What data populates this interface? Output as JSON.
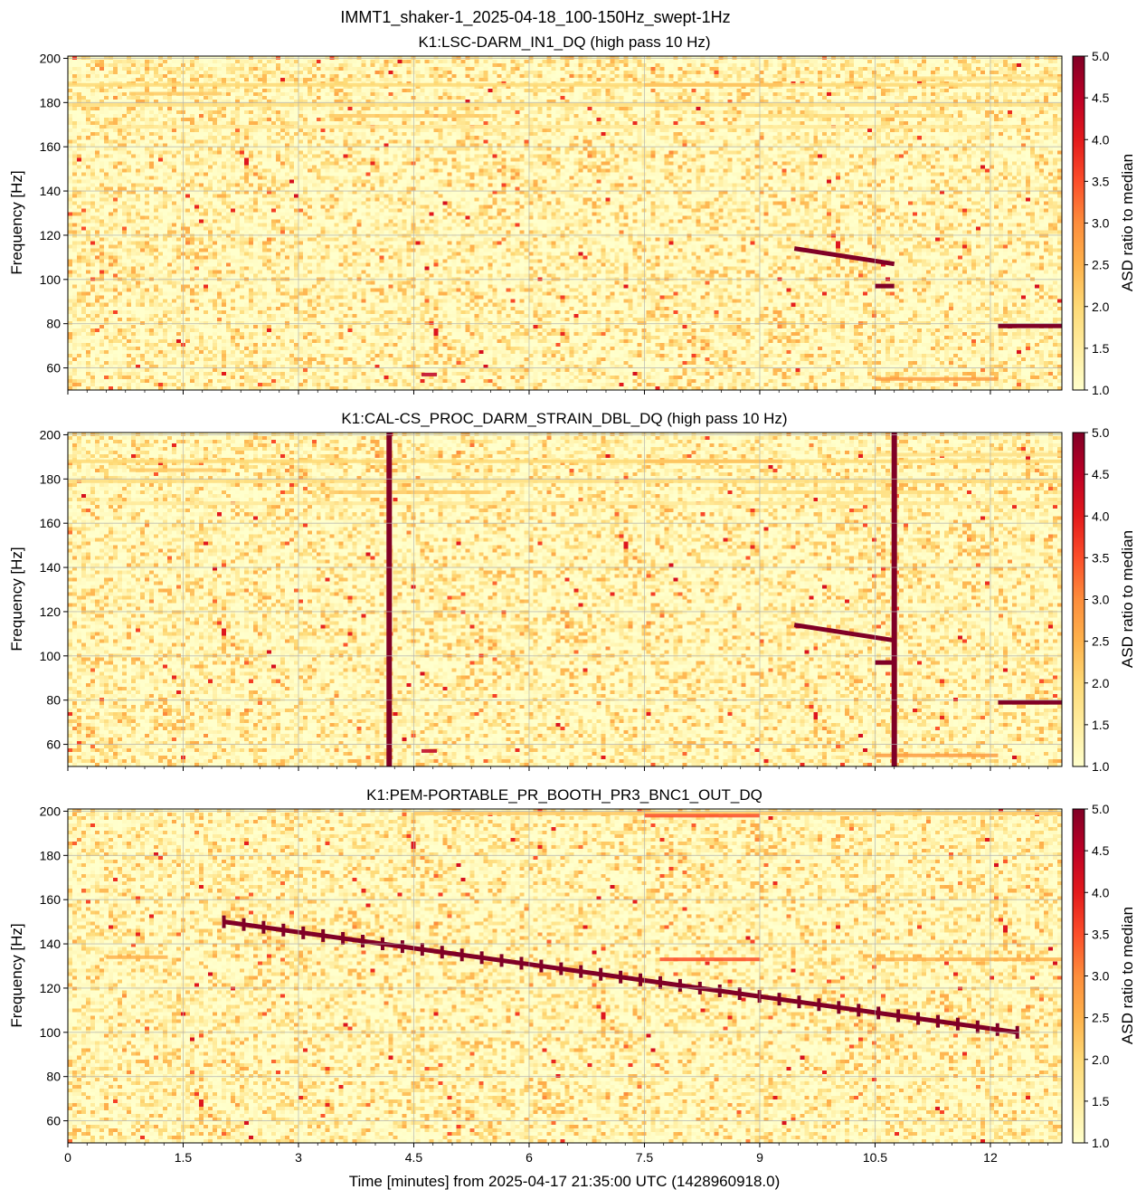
{
  "figure": {
    "suptitle": "IMMT1_shaker-1_2025-04-18_100-150Hz_swept-1Hz",
    "xlabel": "Time [minutes] from 2025-04-17 21:35:00 UTC (1428960918.0)",
    "ylabel": "Frequency [Hz]",
    "colorbar_label": "ASD ratio to median"
  },
  "colormap": {
    "name": "YlOrRd",
    "stops": [
      "#ffffcc",
      "#ffeda0",
      "#fed976",
      "#feb24c",
      "#fd8d3c",
      "#fc4e2a",
      "#e31a1c",
      "#bd0026",
      "#800026"
    ]
  },
  "chart_data": [
    {
      "type": "heatmap",
      "title": "K1:LSC-DARM_IN1_DQ (high pass 10 Hz)",
      "xlim": [
        0,
        12.93
      ],
      "ylim": [
        50,
        201
      ],
      "xticks": [
        0,
        1.5,
        3,
        4.5,
        6,
        7.5,
        9,
        10.5,
        12
      ],
      "xtick_labels": [],
      "yticks": [
        60,
        80,
        100,
        120,
        140,
        160,
        180,
        200
      ],
      "ytick_labels": [
        "60",
        "80",
        "100",
        "120",
        "140",
        "160",
        "180",
        "200"
      ],
      "colorbar": {
        "range": [
          1.0,
          5.0
        ],
        "ticks": [
          "1.0",
          "1.5",
          "2.0",
          "2.5",
          "3.0",
          "3.5",
          "4.0",
          "4.5",
          "5.0"
        ]
      },
      "grid": true,
      "horizontal_lines": [
        {
          "freq": 188,
          "t0": 0,
          "t1": 12.93,
          "value": 2.0
        },
        {
          "freq": 184,
          "t0": 0.8,
          "t1": 2.0,
          "value": 2.2
        },
        {
          "freq": 179,
          "t0": 0,
          "t1": 12.93,
          "value": 1.9
        },
        {
          "freq": 174,
          "t0": 3.4,
          "t1": 5.5,
          "value": 2.2
        },
        {
          "freq": 174,
          "t0": 8.8,
          "t1": 11.5,
          "value": 1.9
        },
        {
          "freq": 169,
          "t0": 0.5,
          "t1": 12.93,
          "value": 1.6
        },
        {
          "freq": 188,
          "t0": 7.5,
          "t1": 9.3,
          "value": 2.3
        },
        {
          "freq": 191,
          "t0": 10.5,
          "t1": 12.93,
          "value": 1.8
        },
        {
          "freq": 55,
          "t0": 10.5,
          "t1": 12.1,
          "value": 2.8
        },
        {
          "freq": 57,
          "t0": 4.6,
          "t1": 4.8,
          "value": 4.5
        }
      ],
      "segments": [
        {
          "t0": 9.45,
          "f0": 114,
          "t1": 10.75,
          "f1": 107,
          "value": 5.0
        },
        {
          "t0": 10.5,
          "f0": 97,
          "t1": 10.75,
          "f1": 97,
          "value": 5.0
        },
        {
          "t0": 12.1,
          "f0": 79,
          "t1": 12.93,
          "f1": 79,
          "value": 5.0
        }
      ],
      "vertical_lines": []
    },
    {
      "type": "heatmap",
      "title": "K1:CAL-CS_PROC_DARM_STRAIN_DBL_DQ (high pass 10 Hz)",
      "xlim": [
        0,
        12.93
      ],
      "ylim": [
        50,
        201
      ],
      "xticks": [
        0,
        1.5,
        3,
        4.5,
        6,
        7.5,
        9,
        10.5,
        12
      ],
      "xtick_labels": [],
      "yticks": [
        60,
        80,
        100,
        120,
        140,
        160,
        180,
        200
      ],
      "ytick_labels": [
        "60",
        "80",
        "100",
        "120",
        "140",
        "160",
        "180",
        "200"
      ],
      "colorbar": {
        "range": [
          1.0,
          5.0
        ],
        "ticks": [
          "1.0",
          "1.5",
          "2.0",
          "2.5",
          "3.0",
          "3.5",
          "4.0",
          "4.5",
          "5.0"
        ]
      },
      "grid": true,
      "horizontal_lines": [
        {
          "freq": 188,
          "t0": 0,
          "t1": 12.93,
          "value": 2.0
        },
        {
          "freq": 184,
          "t0": 0.8,
          "t1": 2.0,
          "value": 2.2
        },
        {
          "freq": 179,
          "t0": 0,
          "t1": 12.93,
          "value": 1.9
        },
        {
          "freq": 174,
          "t0": 3.4,
          "t1": 5.5,
          "value": 2.2
        },
        {
          "freq": 174,
          "t0": 8.8,
          "t1": 11.5,
          "value": 1.9
        },
        {
          "freq": 169,
          "t0": 0.5,
          "t1": 12.93,
          "value": 1.6
        },
        {
          "freq": 188,
          "t0": 7.5,
          "t1": 9.3,
          "value": 2.3
        },
        {
          "freq": 191,
          "t0": 10.5,
          "t1": 12.93,
          "value": 1.8
        },
        {
          "freq": 55,
          "t0": 10.5,
          "t1": 12.1,
          "value": 2.8
        },
        {
          "freq": 57,
          "t0": 4.6,
          "t1": 4.8,
          "value": 4.5
        }
      ],
      "segments": [
        {
          "t0": 9.45,
          "f0": 114,
          "t1": 10.75,
          "f1": 107,
          "value": 5.0
        },
        {
          "t0": 10.5,
          "f0": 97,
          "t1": 10.75,
          "f1": 97,
          "value": 5.0
        },
        {
          "t0": 12.1,
          "f0": 79,
          "t1": 12.93,
          "f1": 79,
          "value": 5.0
        }
      ],
      "vertical_lines": [
        {
          "t": 4.18,
          "value": 5.0
        },
        {
          "t": 10.75,
          "value": 5.0
        }
      ]
    },
    {
      "type": "heatmap",
      "title": "K1:PEM-PORTABLE_PR_BOOTH_PR3_BNC1_OUT_DQ",
      "xlim": [
        0,
        12.93
      ],
      "ylim": [
        50,
        201
      ],
      "xticks": [
        0,
        1.5,
        3,
        4.5,
        6,
        7.5,
        9,
        10.5,
        12
      ],
      "xtick_labels": [
        "0",
        "1.5",
        "3",
        "4.5",
        "6",
        "7.5",
        "9",
        "10.5",
        "12"
      ],
      "yticks": [
        60,
        80,
        100,
        120,
        140,
        160,
        180,
        200
      ],
      "ytick_labels": [
        "60",
        "80",
        "100",
        "120",
        "140",
        "160",
        "180",
        "200"
      ],
      "colorbar": {
        "range": [
          1.0,
          5.0
        ],
        "ticks": [
          "1.0",
          "1.5",
          "2.0",
          "2.5",
          "3.0",
          "3.5",
          "4.0",
          "4.5",
          "5.0"
        ]
      },
      "grid": true,
      "horizontal_lines": [
        {
          "freq": 199,
          "t0": 4.5,
          "t1": 12.93,
          "value": 2.2
        },
        {
          "freq": 198,
          "t0": 7.5,
          "t1": 9.0,
          "value": 3.5
        },
        {
          "freq": 134,
          "t0": 0.5,
          "t1": 1.3,
          "value": 2.5
        },
        {
          "freq": 133,
          "t0": 7.7,
          "t1": 9.0,
          "value": 3.5
        },
        {
          "freq": 133,
          "t0": 10.5,
          "t1": 12.93,
          "value": 2.5
        }
      ],
      "segments": [
        {
          "t0": 2.03,
          "f0": 150,
          "t1": 12.35,
          "f1": 100,
          "value": 5.0
        }
      ],
      "vertical_lines": []
    }
  ]
}
